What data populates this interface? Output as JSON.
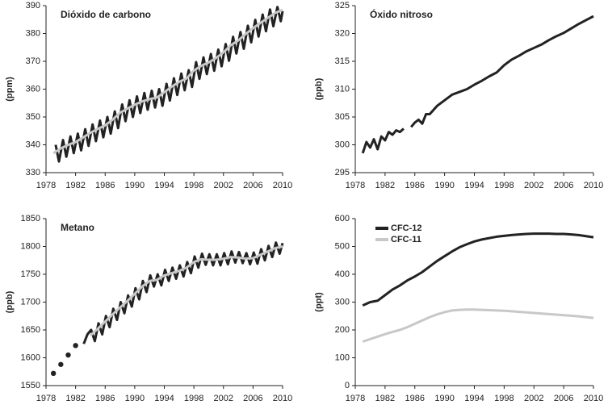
{
  "chart_data": [
    {
      "type": "line",
      "title": "Dióxido de carbono",
      "ylabel": "(ppm)",
      "xlim": [
        1978,
        2010
      ],
      "xticks": [
        1978,
        1982,
        1986,
        1990,
        1994,
        1998,
        2002,
        2006,
        2010
      ],
      "ylim": [
        330,
        390
      ],
      "yticks": [
        330,
        340,
        350,
        360,
        370,
        380,
        390
      ],
      "series": [
        {
          "color": "#222222",
          "width": 3,
          "x": [
            1979.3,
            1979.75,
            1980.3,
            1980.75,
            1981.3,
            1981.75,
            1982.3,
            1982.75,
            1983.3,
            1983.75,
            1984.3,
            1984.75,
            1985.3,
            1985.75,
            1986.3,
            1986.75,
            1987.3,
            1987.75,
            1988.3,
            1988.75,
            1989.3,
            1989.75,
            1990.3,
            1990.75,
            1991.3,
            1991.75,
            1992.3,
            1992.75,
            1993.3,
            1993.75,
            1994.3,
            1994.75,
            1995.3,
            1995.75,
            1996.3,
            1996.75,
            1997.3,
            1997.75,
            1998.3,
            1998.75,
            1999.3,
            1999.75,
            2000.3,
            2000.75,
            2001.3,
            2001.75,
            2002.3,
            2002.75,
            2003.3,
            2003.75,
            2004.3,
            2004.75,
            2005.3,
            2005.75,
            2006.3,
            2006.75,
            2007.3,
            2007.75,
            2008.3,
            2008.75,
            2009.3,
            2009.75,
            2010
          ],
          "values": [
            340,
            334,
            341.7,
            335.7,
            343,
            337,
            344,
            338,
            345.6,
            339.6,
            347.3,
            341.3,
            348.7,
            342.7,
            350,
            344,
            352,
            346,
            354.5,
            348.5,
            356,
            350,
            357.4,
            351.4,
            358.6,
            352.6,
            359.4,
            353.4,
            360,
            354,
            361.9,
            355.9,
            363.9,
            357.9,
            365.6,
            359.6,
            366.8,
            360.8,
            369.7,
            363.7,
            371.4,
            365.4,
            372.6,
            366.6,
            374.2,
            368.2,
            376.2,
            370.2,
            378.8,
            372.8,
            380.5,
            374.5,
            382.8,
            376.8,
            384.9,
            378.9,
            386.8,
            380.8,
            388.6,
            382.6,
            389.5,
            384.4,
            388
          ]
        },
        {
          "color": "#c8c8c8",
          "width": 3,
          "x": [
            1979,
            1980,
            1981,
            1982,
            1983,
            1984,
            1985,
            1986,
            1987,
            1988,
            1989,
            1990,
            1991,
            1992,
            1993,
            1994,
            1995,
            1996,
            1997,
            1998,
            1999,
            2000,
            2001,
            2002,
            2003,
            2004,
            2005,
            2006,
            2007,
            2008,
            2009,
            2010
          ],
          "values": [
            337,
            338.7,
            340,
            341,
            342.6,
            344.3,
            345.7,
            347,
            349,
            351.5,
            353,
            354.4,
            355.6,
            356.4,
            357,
            358.9,
            360.9,
            362.6,
            363.8,
            366.7,
            368.4,
            369.6,
            371.2,
            373.2,
            375.8,
            377.5,
            379.8,
            381.9,
            383.8,
            385.6,
            387.4,
            388.5
          ]
        }
      ]
    },
    {
      "type": "line",
      "title": "Óxido nitroso",
      "ylabel": "(ppb)",
      "xlim": [
        1978,
        2010
      ],
      "xticks": [
        1978,
        1982,
        1986,
        1990,
        1994,
        1998,
        2002,
        2006,
        2010
      ],
      "ylim": [
        295,
        325
      ],
      "yticks": [
        295,
        300,
        305,
        310,
        315,
        320,
        325
      ],
      "series": [
        {
          "color": "#222222",
          "width": 3,
          "x": [
            1979,
            1979.5,
            1980,
            1980.5,
            1981,
            1981.5,
            1982,
            1982.5,
            1983,
            1983.5,
            1984,
            1984.5,
            1985,
            1985.5,
            1986,
            1986.5,
            1987,
            1987.5,
            1988,
            1989,
            1990,
            1991,
            1992,
            1993,
            1994,
            1995,
            1996,
            1997,
            1998,
            1999,
            2000,
            2001,
            2002,
            2003,
            2004,
            2005,
            2006,
            2007,
            2008,
            2009,
            2010
          ],
          "values": [
            298.5,
            300.5,
            299.5,
            301,
            299.2,
            301.5,
            300.8,
            302.3,
            301.8,
            302.6,
            302.3,
            302.9,
            null,
            303.2,
            304,
            304.5,
            303.8,
            305.5,
            305.5,
            307,
            308,
            309,
            309.5,
            310,
            310.8,
            311.5,
            312.3,
            313,
            314.3,
            315.3,
            316,
            316.8,
            317.4,
            318,
            318.8,
            319.5,
            320.1,
            320.9,
            321.7,
            322.4,
            323.1
          ]
        }
      ]
    },
    {
      "type": "line",
      "title": "Metano",
      "ylabel": "(ppb)",
      "xlim": [
        1978,
        2010
      ],
      "xticks": [
        1978,
        1982,
        1986,
        1990,
        1994,
        1998,
        2002,
        2006,
        2010
      ],
      "ylim": [
        1550,
        1850
      ],
      "yticks": [
        1550,
        1600,
        1650,
        1700,
        1750,
        1800,
        1850
      ],
      "series": [
        {
          "color": "#222222",
          "marker": "dot",
          "x": [
            1979,
            1980,
            1981,
            1982
          ],
          "values": [
            1572,
            1588,
            1605,
            1622
          ]
        },
        {
          "color": "#222222",
          "width": 3,
          "x": [
            1983.1,
            1983.6,
            1984.1,
            1984.6,
            1985.1,
            1985.6,
            1986.1,
            1986.6,
            1987.1,
            1987.6,
            1988.1,
            1988.6,
            1989.1,
            1989.6,
            1990.1,
            1990.6,
            1991.1,
            1991.6,
            1992.1,
            1992.6,
            1993.1,
            1993.6,
            1994.1,
            1994.6,
            1995.1,
            1995.6,
            1996.1,
            1996.6,
            1997.1,
            1997.6,
            1998.1,
            1998.6,
            1999.1,
            1999.6,
            2000.1,
            2000.6,
            2001.1,
            2001.6,
            2002.1,
            2002.6,
            2003.1,
            2003.6,
            2004.1,
            2004.6,
            2005.1,
            2005.6,
            2006.1,
            2006.6,
            2007.1,
            2007.6,
            2008.1,
            2008.6,
            2009.1,
            2009.6,
            2010
          ],
          "values": [
            1625,
            1642,
            1650,
            1630,
            1662,
            1642,
            1675,
            1655,
            1688,
            1668,
            1700,
            1680,
            1712,
            1692,
            1725,
            1705,
            1738,
            1718,
            1748,
            1728,
            1750,
            1730,
            1758,
            1738,
            1762,
            1742,
            1766,
            1746,
            1772,
            1752,
            1782,
            1762,
            1787,
            1767,
            1786,
            1766,
            1786,
            1766,
            1788,
            1768,
            1791,
            1771,
            1790,
            1770,
            1788,
            1768,
            1789,
            1769,
            1795,
            1775,
            1801,
            1781,
            1807,
            1787,
            1806
          ]
        },
        {
          "color": "#c8c8c8",
          "width": 3,
          "x": [
            1984,
            1985,
            1986,
            1987,
            1988,
            1989,
            1990,
            1991,
            1992,
            1993,
            1994,
            1995,
            1996,
            1997,
            1998,
            1999,
            2000,
            2001,
            2002,
            2003,
            2004,
            2005,
            2006,
            2007,
            2008,
            2009,
            2010
          ],
          "values": [
            1640,
            1652,
            1665,
            1678,
            1690,
            1702,
            1715,
            1728,
            1738,
            1740,
            1748,
            1752,
            1756,
            1762,
            1772,
            1777,
            1776,
            1776,
            1778,
            1781,
            1780,
            1778,
            1779,
            1785,
            1791,
            1797,
            1800
          ]
        }
      ]
    },
    {
      "type": "line",
      "ylabel": "(ppt)",
      "legend": "upper left",
      "xlim": [
        1978,
        2010
      ],
      "xticks": [
        1978,
        1982,
        1986,
        1990,
        1994,
        1998,
        2002,
        2006,
        2010
      ],
      "ylim": [
        0,
        600
      ],
      "yticks": [
        0,
        100,
        200,
        300,
        400,
        500,
        600
      ],
      "series": [
        {
          "name": "CFC-12",
          "color": "#222222",
          "width": 3,
          "x": [
            1979,
            1980,
            1981,
            1982,
            1983,
            1984,
            1985,
            1986,
            1987,
            1988,
            1989,
            1990,
            1991,
            1992,
            1993,
            1994,
            1995,
            1996,
            1997,
            1998,
            1999,
            2000,
            2001,
            2002,
            2003,
            2004,
            2005,
            2006,
            2007,
            2008,
            2009,
            2010
          ],
          "values": [
            288,
            300,
            305,
            325,
            345,
            360,
            378,
            392,
            408,
            428,
            448,
            465,
            482,
            497,
            508,
            518,
            525,
            530,
            535,
            538,
            541,
            543,
            545,
            546,
            546,
            546,
            545,
            545,
            543,
            541,
            537,
            533
          ]
        },
        {
          "name": "CFC-11",
          "color": "#c8c8c8",
          "width": 3,
          "x": [
            1979,
            1980,
            1981,
            1982,
            1983,
            1984,
            1985,
            1986,
            1987,
            1988,
            1989,
            1990,
            1991,
            1992,
            1993,
            1994,
            1995,
            1996,
            1997,
            1998,
            1999,
            2000,
            2001,
            2002,
            2003,
            2004,
            2005,
            2006,
            2007,
            2008,
            2009,
            2010
          ],
          "values": [
            158,
            167,
            176,
            185,
            193,
            200,
            210,
            222,
            234,
            246,
            256,
            264,
            270,
            272,
            273,
            273,
            272,
            271,
            270,
            269,
            267,
            265,
            263,
            261,
            259,
            257,
            255,
            253,
            251,
            249,
            246,
            243
          ]
        }
      ]
    }
  ]
}
